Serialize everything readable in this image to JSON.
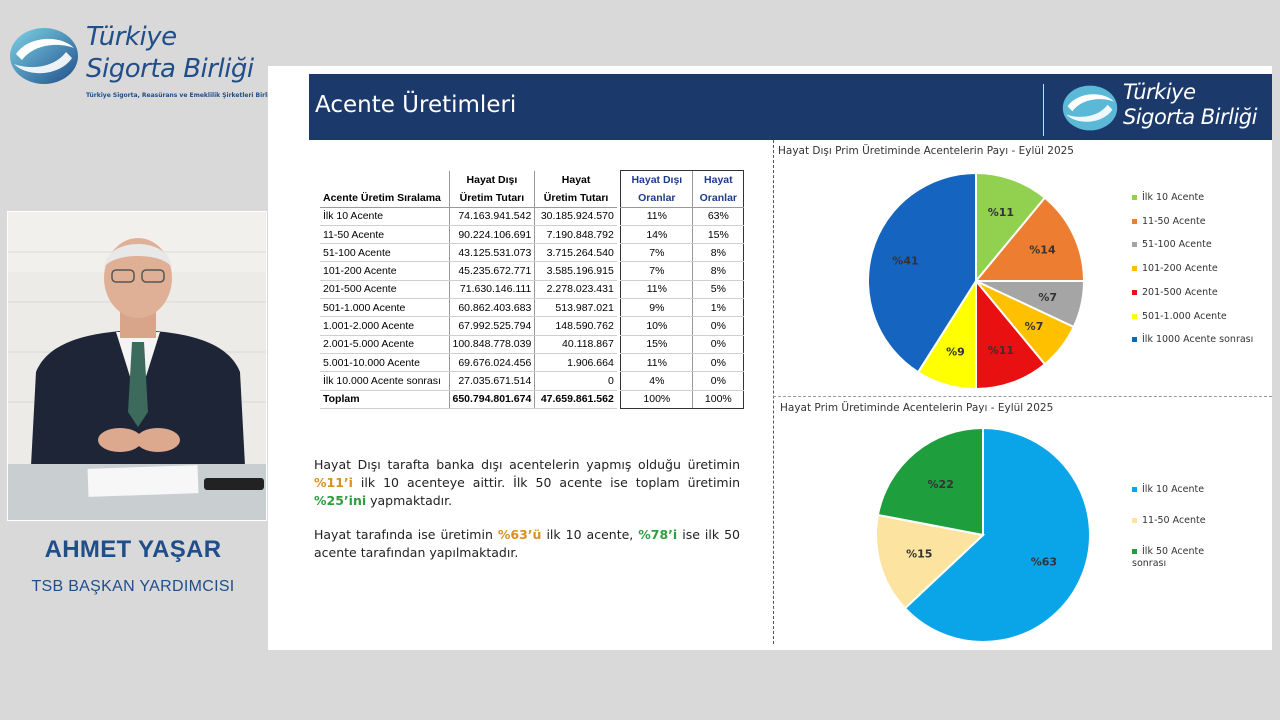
{
  "brand": {
    "line1": "Türkiye",
    "line2": "Sigorta Birliği",
    "tagline": "Türkiye Sigorta, Reasürans ve Emeklilik Şirketleri Birliği",
    "primary_color": "#1f4e8a",
    "icon": "tsb-logo-icon"
  },
  "speaker": {
    "name": "AHMET YAŞAR",
    "role": "TSB BAŞKAN YARDIMCISI"
  },
  "slide": {
    "title": "Acente Üretimleri",
    "header_logo_line1": "Türkiye",
    "header_logo_line2": "Sigorta Birliği",
    "header_color": "#1b3a6b",
    "table": {
      "headers": {
        "rank": "Acente Üretim Sıralama",
        "hd_top": "Hayat Dışı",
        "hd_bottom": "Üretim Tutarı",
        "h_top": "Hayat",
        "h_bottom": "Üretim Tutarı",
        "hdo_top": "Hayat Dışı",
        "hdo_bottom": "Oranlar",
        "ho_top": "Hayat",
        "ho_bottom": "Oranlar"
      },
      "rows": [
        {
          "name": "İlk 10 Acente",
          "hd": "74.163.941.542",
          "h": "30.185.924.570",
          "hdo": "11%",
          "ho": "63%"
        },
        {
          "name": "11-50 Acente",
          "hd": "90.224.106.691",
          "h": "7.190.848.792",
          "hdo": "14%",
          "ho": "15%"
        },
        {
          "name": "51-100 Acente",
          "hd": "43.125.531.073",
          "h": "3.715.264.540",
          "hdo": "7%",
          "ho": "8%"
        },
        {
          "name": "101-200 Acente",
          "hd": "45.235.672.771",
          "h": "3.585.196.915",
          "hdo": "7%",
          "ho": "8%"
        },
        {
          "name": "201-500 Acente",
          "hd": "71.630.146.111",
          "h": "2.278.023.431",
          "hdo": "11%",
          "ho": "5%"
        },
        {
          "name": "501-1.000 Acente",
          "hd": "60.862.403.683",
          "h": "513.987.021",
          "hdo": "9%",
          "ho": "1%"
        },
        {
          "name": "1.001-2.000 Acente",
          "hd": "67.992.525.794",
          "h": "148.590.762",
          "hdo": "10%",
          "ho": "0%"
        },
        {
          "name": "2.001-5.000 Acente",
          "hd": "100.848.778.039",
          "h": "40.118.867",
          "hdo": "15%",
          "ho": "0%"
        },
        {
          "name": "5.001-10.000 Acente",
          "hd": "69.676.024.456",
          "h": "1.906.664",
          "hdo": "11%",
          "ho": "0%"
        },
        {
          "name": "İlk 10.000 Acente sonrası",
          "hd": "27.035.671.514",
          "h": "0",
          "hdo": "4%",
          "ho": "0%"
        }
      ],
      "total": {
        "name": "Toplam",
        "hd": "650.794.801.674",
        "h": "47.659.861.562",
        "hdo": "100%",
        "ho": "100%"
      }
    },
    "paragraph1": {
      "a": "Hayat Dışı tarafta banka dışı acentelerin yapmış olduğu üretimin ",
      "h1": "%11’i",
      "b": " ilk 10 acenteye aittir. İlk 50 acente ise toplam üretimin ",
      "h2": "%25’ini",
      "c": " yapmaktadır."
    },
    "paragraph2": {
      "a": "Hayat tarafında ise üretimin ",
      "h1": "%63’ü",
      "b": " ilk 10 acente, ",
      "h2": "%78’i",
      "c": " ise ilk 50 acente tarafından yapılmaktadır."
    },
    "highlight_colors": {
      "orange": "#d9901f",
      "green": "#2e9e3f"
    }
  },
  "chart_data": [
    {
      "type": "pie",
      "title": "Hayat Dışı Prim Üretiminde Acentelerin Payı - Eylül 2025",
      "categories": [
        "İlk 10 Acente",
        "11-50 Acente",
        "51-100 Acente",
        "101-200 Acente",
        "201-500 Acente",
        "501-1.000 Acente",
        "İlk 1000 Acente sonrası"
      ],
      "values": [
        11,
        14,
        7,
        7,
        11,
        9,
        41
      ],
      "labels": [
        "%11",
        "%14",
        "%7",
        "%7",
        "%11",
        "%9",
        "%41"
      ],
      "colors": [
        "#92d050",
        "#ed7d31",
        "#a5a5a5",
        "#ffc000",
        "#e81010",
        "#ffff00",
        "#1565c0"
      ],
      "legend": "right"
    },
    {
      "type": "pie",
      "title": "Hayat Prim Üretiminde Acentelerin Payı - Eylül 2025",
      "categories": [
        "İlk 10 Acente",
        "11-50 Acente",
        "İlk 50 Acente sonrası"
      ],
      "values": [
        63,
        15,
        22
      ],
      "labels": [
        "%63",
        "%15",
        "%22"
      ],
      "colors": [
        "#0aa5e8",
        "#fce4a0",
        "#1f9e3e"
      ],
      "legend": "right"
    }
  ]
}
